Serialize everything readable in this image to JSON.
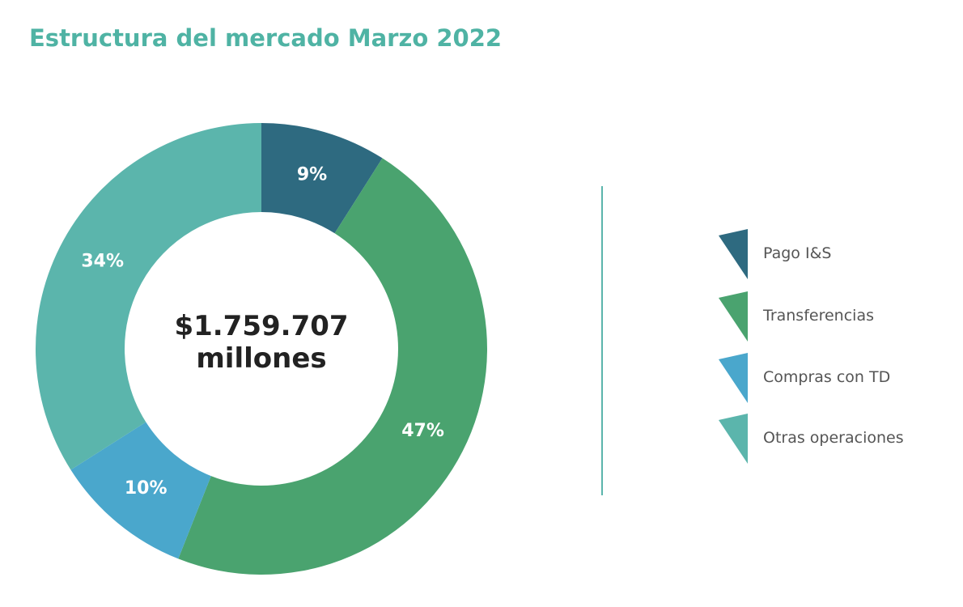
{
  "title": "Estructura del mercado Marzo 2022",
  "colors": {
    "title": "#4fb3a4",
    "text_dark": "#222222",
    "legend_text": "#555555"
  },
  "center": {
    "line1": "$1.759.707",
    "line2": "millones"
  },
  "chart_data": {
    "type": "pie",
    "donut": true,
    "title": "Estructura del mercado Marzo 2022",
    "categories": [
      "Pago I&S",
      "Transferencias",
      "Compras con TD",
      "Otras operaciones"
    ],
    "values": [
      9,
      47,
      10,
      34
    ],
    "labels": [
      "9%",
      "47%",
      "10%",
      "34%"
    ],
    "colors": [
      "#2e6a80",
      "#4aa36f",
      "#4aa7cc",
      "#5bb5ac"
    ],
    "center_text": "$1.759.707 millones",
    "legend_position": "right"
  }
}
